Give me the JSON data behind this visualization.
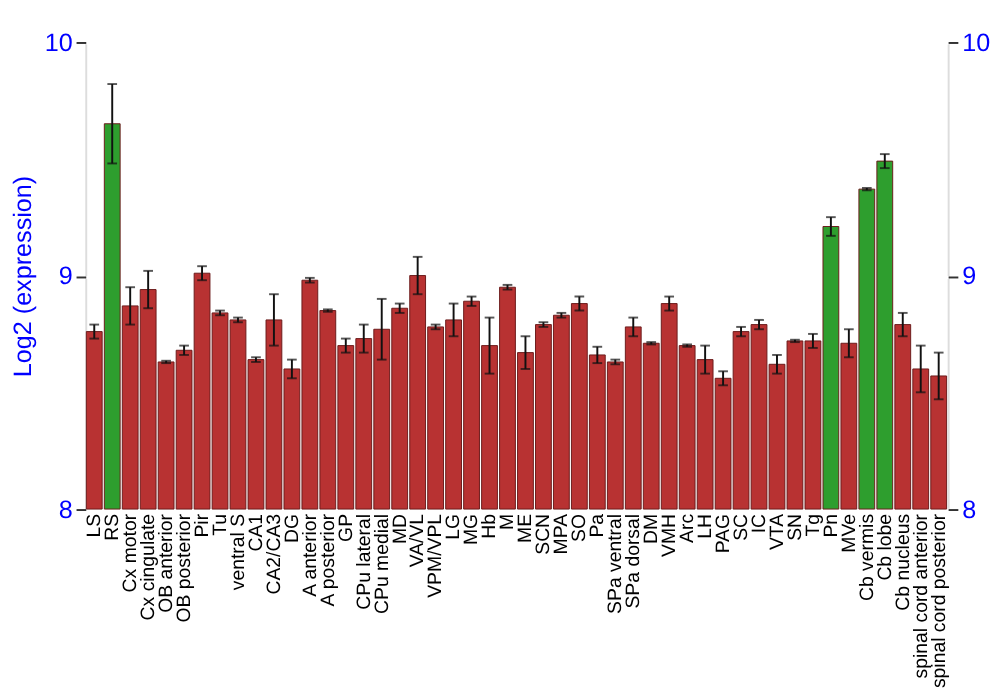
{
  "chart_data": {
    "type": "bar",
    "ylabel": "Log2 (expression)",
    "categories": [
      "LS",
      "RS",
      "Cx motor",
      "Cx cingulate",
      "OB anterior",
      "OB posterior",
      "Pir",
      "Tu",
      "ventral S",
      "CA1",
      "CA2/CA3",
      "DG",
      "A anterior",
      "A posterior",
      "GP",
      "CPu lateral",
      "CPu medial",
      "MD",
      "VA/VL",
      "VPM/VPL",
      "LG",
      "MG",
      "Hb",
      "M",
      "ME",
      "SCN",
      "MPA",
      "SO",
      "Pa",
      "SPa ventral",
      "SPa dorsal",
      "DM",
      "VMH",
      "Arc",
      "LH",
      "PAG",
      "SC",
      "IC",
      "VTA",
      "SN",
      "Tg",
      "Pn",
      "MVe",
      "Cb vermis",
      "Cb lobe",
      "Cb nucleus",
      "spinal cord anterior",
      "spinal cord posterior"
    ],
    "values": [
      8.76,
      9.65,
      8.87,
      8.94,
      8.63,
      8.68,
      9.01,
      8.84,
      8.81,
      8.64,
      8.81,
      8.6,
      8.98,
      8.85,
      8.7,
      8.73,
      8.77,
      8.86,
      9.0,
      8.78,
      8.81,
      8.89,
      8.7,
      8.95,
      8.67,
      8.79,
      8.83,
      8.88,
      8.66,
      8.63,
      8.78,
      8.71,
      8.88,
      8.7,
      8.64,
      8.56,
      8.76,
      8.79,
      8.62,
      8.72,
      8.72,
      9.21,
      8.71,
      9.37,
      9.49,
      8.79,
      8.6,
      8.57
    ],
    "errors": [
      0.03,
      0.17,
      0.08,
      0.08,
      0.005,
      0.02,
      0.03,
      0.01,
      0.01,
      0.01,
      0.11,
      0.04,
      0.01,
      0.005,
      0.03,
      0.06,
      0.13,
      0.02,
      0.08,
      0.01,
      0.07,
      0.02,
      0.12,
      0.01,
      0.07,
      0.01,
      0.01,
      0.03,
      0.035,
      0.01,
      0.04,
      0.005,
      0.03,
      0.005,
      0.06,
      0.03,
      0.02,
      0.02,
      0.04,
      0.005,
      0.03,
      0.04,
      0.06,
      0.005,
      0.03,
      0.05,
      0.1,
      0.1
    ],
    "colors": [
      "#b83232",
      "#2e9e2e",
      "#b83232",
      "#b83232",
      "#b83232",
      "#b83232",
      "#b83232",
      "#b83232",
      "#b83232",
      "#b83232",
      "#b83232",
      "#b83232",
      "#b83232",
      "#b83232",
      "#b83232",
      "#b83232",
      "#b83232",
      "#b83232",
      "#b83232",
      "#b83232",
      "#b83232",
      "#b83232",
      "#b83232",
      "#b83232",
      "#b83232",
      "#b83232",
      "#b83232",
      "#b83232",
      "#b83232",
      "#b83232",
      "#b83232",
      "#b83232",
      "#b83232",
      "#b83232",
      "#b83232",
      "#b83232",
      "#b83232",
      "#b83232",
      "#b83232",
      "#b83232",
      "#b83232",
      "#2e9e2e",
      "#b83232",
      "#2e9e2e",
      "#2e9e2e",
      "#b83232",
      "#b83232",
      "#b83232"
    ],
    "ylim": [
      8,
      10
    ],
    "yticks": [
      8,
      9,
      10
    ],
    "y2lim": [
      8,
      10
    ],
    "y2ticks": [
      8,
      9,
      10
    ],
    "grid": "y"
  }
}
